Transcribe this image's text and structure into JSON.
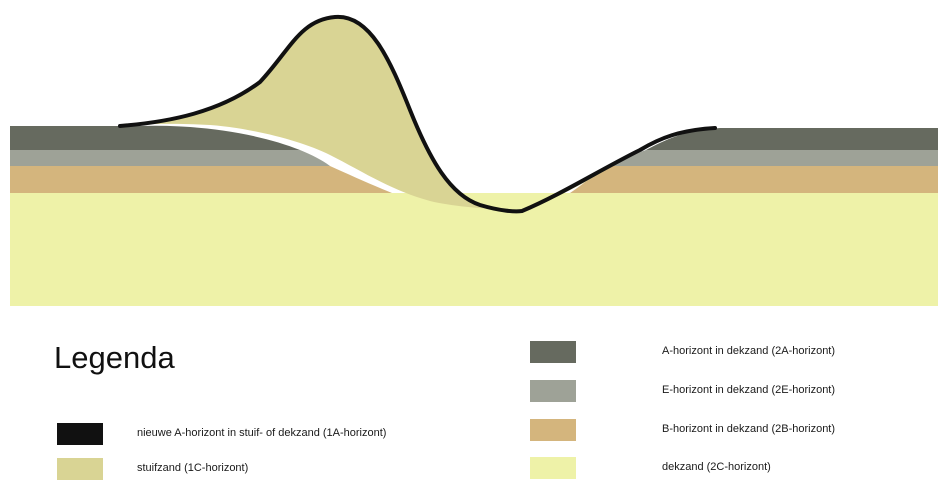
{
  "legend": {
    "title": "Legenda",
    "items": [
      {
        "id": "1A",
        "label": "nieuwe A-horizont in stuif- of dekzand (1A-horizont)",
        "color": "#111111"
      },
      {
        "id": "1C",
        "label": "stuifzand (1C-horizont)",
        "color": "#d9d494"
      },
      {
        "id": "2A",
        "label": "A-horizont in dekzand (2A-horizont)",
        "color": "#666a5f"
      },
      {
        "id": "2E",
        "label": "E-horizont in dekzand (2E-horizont)",
        "color": "#9ea297"
      },
      {
        "id": "2B",
        "label": "B-horizont in dekzand (2B-horizont)",
        "color": "#d4b57d"
      },
      {
        "id": "2C",
        "label": "dekzand (2C-horizont)",
        "color": "#eef2a8"
      }
    ]
  },
  "colors": {
    "background": "#ffffff",
    "a_horizon": "#666a5f",
    "e_horizon": "#9ea297",
    "b_horizon": "#d4b57d",
    "dekzand": "#eef2a8",
    "stuifzand": "#d9d494",
    "new_a_horizon": "#111111"
  }
}
